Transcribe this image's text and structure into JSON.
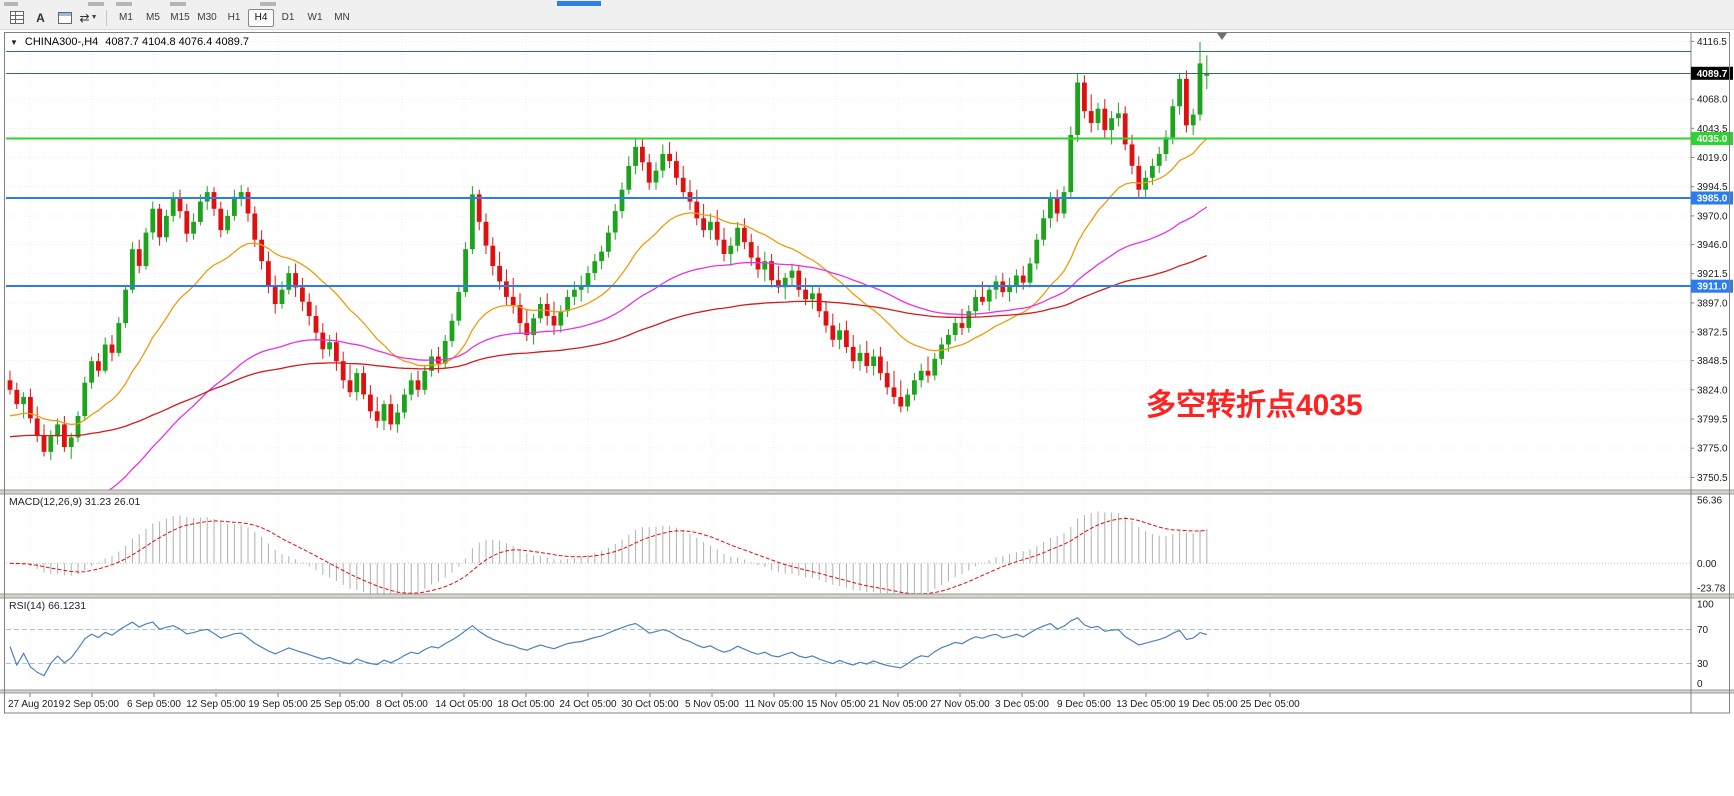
{
  "toolbar": {
    "text_tool_label": "A",
    "timeframes": [
      "M1",
      "M5",
      "M15",
      "M30",
      "H1",
      "H4",
      "D1",
      "W1",
      "MN"
    ],
    "active_timeframe": "H4"
  },
  "chart_header": {
    "symbol": "CHINA300-,H4",
    "ohlc": "4087.7 4104.8 4076.4 4089.7"
  },
  "annotation": {
    "text": "多空转折点4035",
    "color": "#ff2222"
  },
  "chart_data": {
    "type": "candlestick",
    "title": "CHINA300-,H4",
    "symbol": "CHINA300-",
    "timeframe": "H4",
    "ohlc_current": {
      "open": 4087.7,
      "high": 4104.8,
      "low": 4076.4,
      "close": 4089.7
    },
    "ylim": [
      3750.5,
      4116.5
    ],
    "up_color": "#1ca41c",
    "down_color": "#e01010",
    "price_axis": {
      "ticks": [
        4116.5,
        4068.0,
        4043.5,
        4019.0,
        3994.5,
        3970.0,
        3946.0,
        3921.5,
        3897.0,
        3872.5,
        3848.5,
        3824.0,
        3799.5,
        3775.0,
        3750.5
      ]
    },
    "levels": [
      {
        "price": 4108.0,
        "color": "#336b6b",
        "width": 1,
        "badge": null
      },
      {
        "price": 4089.7,
        "color": "#336b6b",
        "width": 1,
        "badge": {
          "text": "4089.7",
          "bg": "#000000",
          "fg": "#ffffff"
        }
      },
      {
        "price": 4035.0,
        "color": "#2fd32f",
        "width": 2,
        "badge": {
          "text": "4035.0",
          "bg": "#2fd32f",
          "fg": "#ffffff"
        }
      },
      {
        "price": 3985.0,
        "color": "#2b7cf0",
        "width": 2,
        "badge": {
          "text": "3985.0",
          "bg": "#2b7cf0",
          "fg": "#ffffff"
        }
      },
      {
        "price": 3911.0,
        "color": "#2b7cf0",
        "width": 2,
        "badge": {
          "text": "3911.0",
          "bg": "#2b7cf0",
          "fg": "#ffffff"
        }
      }
    ],
    "moving_averages": [
      {
        "name": "fast-ma",
        "period": 21,
        "color": "#ef9b0f",
        "seed": 3800
      },
      {
        "name": "medium-ma",
        "period": 60,
        "color": "#e832e8",
        "seed": 3690
      },
      {
        "name": "slow-ma",
        "period": 130,
        "color": "#d01c1c",
        "seed": 3784
      }
    ],
    "time_labels": [
      "27 Aug 2019",
      "2 Sep 05:00",
      "6 Sep 05:00",
      "12 Sep 05:00",
      "19 Sep 05:00",
      "25 Sep 05:00",
      "8 Oct 05:00",
      "14 Oct 05:00",
      "18 Oct 05:00",
      "24 Oct 05:00",
      "30 Oct 05:00",
      "5 Nov 05:00",
      "11 Nov 05:00",
      "15 Nov 05:00",
      "21 Nov 05:00",
      "27 Nov 05:00",
      "3 Dec 05:00",
      "9 Dec 05:00",
      "13 Dec 05:00",
      "19 Dec 05:00",
      "25 Dec 05:00"
    ],
    "macd": {
      "display": "MACD(12,26,9) 31.23 26.01",
      "params": [
        12,
        26,
        9
      ],
      "main_value": 31.23,
      "signal_value": 26.01,
      "axis": [
        56.36,
        0.0,
        -23.78
      ],
      "histogram_color": "#b0b0b0",
      "signal_color": "#e01010"
    },
    "rsi": {
      "display": "RSI(14) 66.1231",
      "period": 14,
      "value": 66.1231,
      "axis": [
        100,
        70,
        30,
        0
      ],
      "levels": [
        70,
        30
      ],
      "line_color": "#4f81bd"
    },
    "candles": [
      [
        3832,
        3840,
        3820,
        3824
      ],
      [
        3824,
        3830,
        3808,
        3812
      ],
      [
        3812,
        3822,
        3800,
        3818
      ],
      [
        3818,
        3825,
        3796,
        3800
      ],
      [
        3800,
        3810,
        3780,
        3786
      ],
      [
        3786,
        3795,
        3768,
        3772
      ],
      [
        3772,
        3790,
        3765,
        3785
      ],
      [
        3785,
        3800,
        3778,
        3795
      ],
      [
        3795,
        3802,
        3772,
        3776
      ],
      [
        3776,
        3788,
        3766,
        3784
      ],
      [
        3784,
        3806,
        3780,
        3802
      ],
      [
        3802,
        3835,
        3798,
        3830
      ],
      [
        3830,
        3852,
        3825,
        3848
      ],
      [
        3848,
        3855,
        3835,
        3840
      ],
      [
        3840,
        3868,
        3838,
        3862
      ],
      [
        3862,
        3870,
        3848,
        3855
      ],
      [
        3855,
        3885,
        3852,
        3880
      ],
      [
        3880,
        3912,
        3876,
        3908
      ],
      [
        3908,
        3948,
        3905,
        3942
      ],
      [
        3942,
        3950,
        3922,
        3928
      ],
      [
        3928,
        3960,
        3925,
        3956
      ],
      [
        3956,
        3982,
        3950,
        3976
      ],
      [
        3976,
        3980,
        3945,
        3952
      ],
      [
        3952,
        3975,
        3948,
        3970
      ],
      [
        3970,
        3990,
        3965,
        3985
      ],
      [
        3985,
        3992,
        3968,
        3974
      ],
      [
        3974,
        3980,
        3948,
        3955
      ],
      [
        3955,
        3972,
        3950,
        3965
      ],
      [
        3965,
        3988,
        3962,
        3982
      ],
      [
        3982,
        3995,
        3975,
        3990
      ],
      [
        3990,
        3994,
        3970,
        3976
      ],
      [
        3976,
        3982,
        3952,
        3958
      ],
      [
        3958,
        3975,
        3955,
        3970
      ],
      [
        3970,
        3992,
        3966,
        3986
      ],
      [
        3986,
        3996,
        3978,
        3990
      ],
      [
        3990,
        3994,
        3965,
        3972
      ],
      [
        3972,
        3978,
        3944,
        3950
      ],
      [
        3950,
        3958,
        3925,
        3932
      ],
      [
        3932,
        3940,
        3905,
        3912
      ],
      [
        3912,
        3920,
        3888,
        3896
      ],
      [
        3896,
        3915,
        3892,
        3908
      ],
      [
        3908,
        3928,
        3904,
        3922
      ],
      [
        3922,
        3930,
        3902,
        3910
      ],
      [
        3910,
        3918,
        3890,
        3898
      ],
      [
        3898,
        3905,
        3878,
        3886
      ],
      [
        3886,
        3895,
        3865,
        3872
      ],
      [
        3872,
        3880,
        3850,
        3858
      ],
      [
        3858,
        3870,
        3852,
        3864
      ],
      [
        3864,
        3872,
        3840,
        3848
      ],
      [
        3848,
        3856,
        3825,
        3832
      ],
      [
        3832,
        3845,
        3818,
        3822
      ],
      [
        3822,
        3842,
        3815,
        3838
      ],
      [
        3838,
        3844,
        3816,
        3820
      ],
      [
        3820,
        3828,
        3800,
        3806
      ],
      [
        3806,
        3818,
        3792,
        3798
      ],
      [
        3798,
        3815,
        3790,
        3812
      ],
      [
        3812,
        3820,
        3790,
        3795
      ],
      [
        3795,
        3812,
        3788,
        3805
      ],
      [
        3805,
        3825,
        3800,
        3820
      ],
      [
        3820,
        3838,
        3815,
        3832
      ],
      [
        3832,
        3840,
        3818,
        3824
      ],
      [
        3824,
        3845,
        3820,
        3840
      ],
      [
        3840,
        3858,
        3835,
        3852
      ],
      [
        3852,
        3860,
        3838,
        3846
      ],
      [
        3846,
        3870,
        3842,
        3865
      ],
      [
        3865,
        3888,
        3860,
        3882
      ],
      [
        3882,
        3912,
        3878,
        3906
      ],
      [
        3906,
        3948,
        3902,
        3942
      ],
      [
        3942,
        3995,
        3938,
        3988
      ],
      [
        3988,
        3992,
        3958,
        3965
      ],
      [
        3965,
        3972,
        3938,
        3945
      ],
      [
        3945,
        3952,
        3920,
        3928
      ],
      [
        3928,
        3940,
        3908,
        3915
      ],
      [
        3915,
        3925,
        3895,
        3902
      ],
      [
        3902,
        3918,
        3888,
        3895
      ],
      [
        3895,
        3905,
        3872,
        3880
      ],
      [
        3880,
        3892,
        3865,
        3870
      ],
      [
        3870,
        3888,
        3862,
        3884
      ],
      [
        3884,
        3902,
        3880,
        3896
      ],
      [
        3896,
        3905,
        3878,
        3886
      ],
      [
        3886,
        3898,
        3870,
        3878
      ],
      [
        3878,
        3895,
        3872,
        3890
      ],
      [
        3890,
        3908,
        3885,
        3902
      ],
      [
        3902,
        3915,
        3895,
        3908
      ],
      [
        3908,
        3920,
        3898,
        3912
      ],
      [
        3912,
        3928,
        3905,
        3922
      ],
      [
        3922,
        3938,
        3916,
        3932
      ],
      [
        3932,
        3945,
        3925,
        3940
      ],
      [
        3940,
        3962,
        3935,
        3956
      ],
      [
        3956,
        3980,
        3950,
        3974
      ],
      [
        3974,
        3998,
        3968,
        3992
      ],
      [
        3992,
        4020,
        3988,
        4012
      ],
      [
        4012,
        4035,
        4005,
        4028
      ],
      [
        4028,
        4034,
        4008,
        4015
      ],
      [
        4015,
        4022,
        3992,
        3998
      ],
      [
        3998,
        4015,
        3992,
        4008
      ],
      [
        4008,
        4030,
        4002,
        4022
      ],
      [
        4022,
        4032,
        4010,
        4016
      ],
      [
        4016,
        4024,
        3996,
        4002
      ],
      [
        4002,
        4012,
        3985,
        3990
      ],
      [
        3990,
        4000,
        3975,
        3982
      ],
      [
        3982,
        3992,
        3962,
        3968
      ],
      [
        3968,
        3980,
        3952,
        3958
      ],
      [
        3958,
        3972,
        3950,
        3965
      ],
      [
        3965,
        3975,
        3945,
        3950
      ],
      [
        3950,
        3960,
        3932,
        3938
      ],
      [
        3938,
        3952,
        3928,
        3945
      ],
      [
        3945,
        3965,
        3940,
        3960
      ],
      [
        3960,
        3968,
        3942,
        3948
      ],
      [
        3948,
        3955,
        3928,
        3935
      ],
      [
        3935,
        3945,
        3918,
        3925
      ],
      [
        3925,
        3940,
        3915,
        3932
      ],
      [
        3932,
        3938,
        3910,
        3916
      ],
      [
        3916,
        3928,
        3905,
        3910
      ],
      [
        3910,
        3922,
        3900,
        3918
      ],
      [
        3918,
        3930,
        3912,
        3924
      ],
      [
        3924,
        3928,
        3902,
        3908
      ],
      [
        3908,
        3918,
        3895,
        3900
      ],
      [
        3900,
        3912,
        3892,
        3905
      ],
      [
        3905,
        3910,
        3885,
        3890
      ],
      [
        3890,
        3898,
        3872,
        3878
      ],
      [
        3878,
        3888,
        3860,
        3866
      ],
      [
        3866,
        3880,
        3858,
        3874
      ],
      [
        3874,
        3882,
        3855,
        3860
      ],
      [
        3860,
        3870,
        3842,
        3848
      ],
      [
        3848,
        3862,
        3840,
        3855
      ],
      [
        3855,
        3865,
        3838,
        3844
      ],
      [
        3844,
        3858,
        3836,
        3852
      ],
      [
        3852,
        3860,
        3832,
        3838
      ],
      [
        3838,
        3848,
        3820,
        3826
      ],
      [
        3826,
        3840,
        3812,
        3818
      ],
      [
        3818,
        3832,
        3805,
        3810
      ],
      [
        3810,
        3825,
        3806,
        3820
      ],
      [
        3820,
        3838,
        3815,
        3832
      ],
      [
        3832,
        3846,
        3826,
        3840
      ],
      [
        3840,
        3852,
        3830,
        3836
      ],
      [
        3836,
        3855,
        3832,
        3850
      ],
      [
        3850,
        3868,
        3845,
        3862
      ],
      [
        3862,
        3875,
        3856,
        3870
      ],
      [
        3870,
        3885,
        3865,
        3880
      ],
      [
        3880,
        3892,
        3870,
        3876
      ],
      [
        3876,
        3895,
        3872,
        3890
      ],
      [
        3890,
        3908,
        3885,
        3902
      ],
      [
        3902,
        3915,
        3895,
        3898
      ],
      [
        3898,
        3912,
        3890,
        3908
      ],
      [
        3908,
        3920,
        3900,
        3915
      ],
      [
        3915,
        3922,
        3902,
        3906
      ],
      [
        3906,
        3918,
        3898,
        3912
      ],
      [
        3912,
        3925,
        3905,
        3920
      ],
      [
        3920,
        3928,
        3908,
        3914
      ],
      [
        3914,
        3935,
        3910,
        3930
      ],
      [
        3930,
        3955,
        3925,
        3950
      ],
      [
        3950,
        3975,
        3945,
        3968
      ],
      [
        3968,
        3990,
        3960,
        3985
      ],
      [
        3985,
        3992,
        3965,
        3972
      ],
      [
        3972,
        3995,
        3968,
        3990
      ],
      [
        3990,
        4045,
        3985,
        4038
      ],
      [
        4038,
        4090,
        4032,
        4082
      ],
      [
        4082,
        4088,
        4052,
        4058
      ],
      [
        4058,
        4072,
        4040,
        4048
      ],
      [
        4048,
        4065,
        4042,
        4060
      ],
      [
        4060,
        4068,
        4035,
        4042
      ],
      [
        4042,
        4058,
        4030,
        4052
      ],
      [
        4052,
        4065,
        4045,
        4056
      ],
      [
        4056,
        4062,
        4025,
        4030
      ],
      [
        4030,
        4038,
        4005,
        4012
      ],
      [
        4012,
        4020,
        3985,
        3992
      ],
      [
        3992,
        4008,
        3986,
        4002
      ],
      [
        4002,
        4018,
        3996,
        4012
      ],
      [
        4012,
        4028,
        4006,
        4022
      ],
      [
        4022,
        4042,
        4016,
        4036
      ],
      [
        4036,
        4068,
        4030,
        4062
      ],
      [
        4062,
        4090,
        4055,
        4085
      ],
      [
        4085,
        4092,
        4040,
        4046
      ],
      [
        4046,
        4060,
        4038,
        4055
      ],
      [
        4055,
        4116,
        4050,
        4098
      ],
      [
        4087.7,
        4104.8,
        4076.4,
        4089.7
      ]
    ]
  }
}
